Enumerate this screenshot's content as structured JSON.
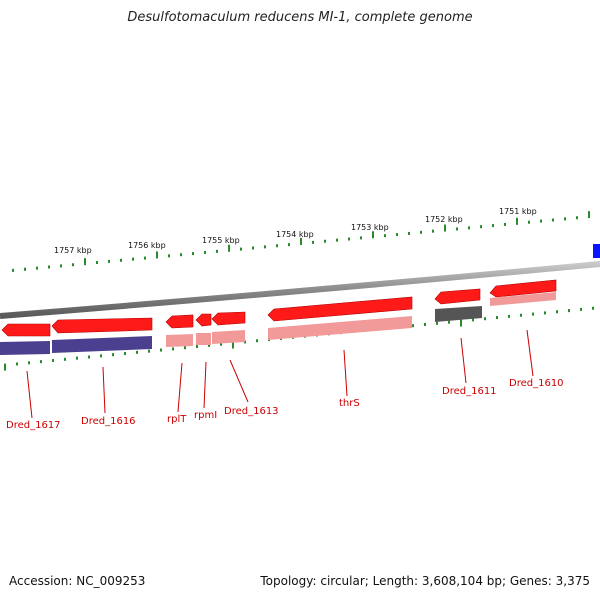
{
  "title": "Desulfotomaculum reducens MI-1, complete genome",
  "footer": {
    "accession": "Accession: NC_009253",
    "summary": "Topology: circular; Length: 3,608,104 bp; Genes: 3,375"
  },
  "colors": {
    "gene_forward": "#ff1a1a",
    "gene_cds_light": "#f29a9a",
    "gene_purple": "#4b3f8f",
    "gene_gray": "#555555",
    "gene_blue": "#0a14ff",
    "tick": "#2a8a2a",
    "label": "#cc0000",
    "backbone": "#8a8a8a"
  },
  "scale": {
    "unit": "kbp",
    "ticks": [
      {
        "pos": 1757,
        "label": "1757 kbp"
      },
      {
        "pos": 1756,
        "label": "1756 kbp"
      },
      {
        "pos": 1755,
        "label": "1755 kbp"
      },
      {
        "pos": 1754,
        "label": "1754 kbp"
      },
      {
        "pos": 1753,
        "label": "1753 kbp"
      },
      {
        "pos": 1752,
        "label": "1752 kbp"
      },
      {
        "pos": 1751,
        "label": "1751 kbp"
      }
    ]
  },
  "genes": [
    {
      "name": "Dred_1617"
    },
    {
      "name": "Dred_1616"
    },
    {
      "name": "rplT"
    },
    {
      "name": "rpmI"
    },
    {
      "name": "Dred_1613"
    },
    {
      "name": "thrS"
    },
    {
      "name": "Dred_1611"
    },
    {
      "name": "Dred_1610"
    }
  ]
}
